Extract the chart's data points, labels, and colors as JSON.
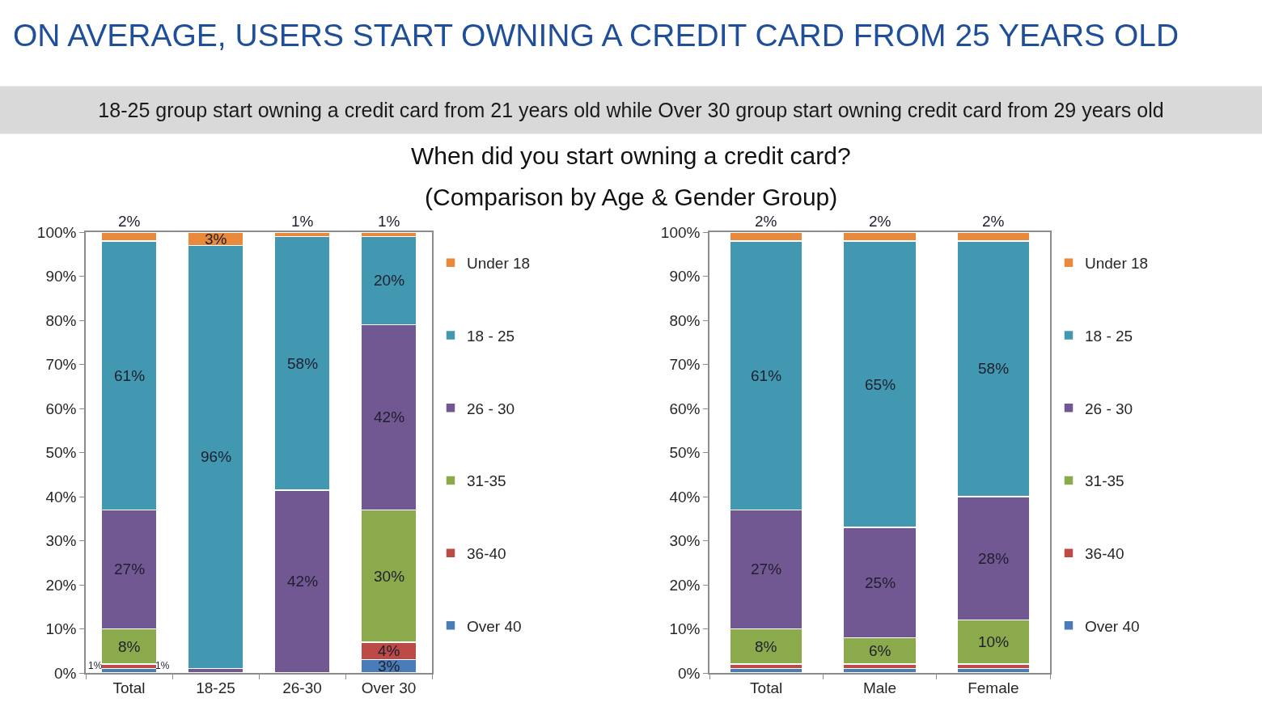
{
  "chart_data": [
    {
      "type": "bar",
      "title": "ON AVERAGE, USERS START OWNING A CREDIT CARD FROM 25 YEARS OLD",
      "subtitle": "18-25 group start owning a credit card from 21 years old while Over 30 group start owning credit card from 29 years old",
      "annotations": [
        "When did you start owning a credit card?",
        "(Comparison by Age & Gender Group)"
      ],
      "categories": [
        "Total",
        "18-25",
        "26-30",
        "Over 30"
      ],
      "stacked": true,
      "legend": "right",
      "ylim": [
        0,
        100
      ],
      "yticks": [
        {
          "value": 0,
          "label": "0%"
        },
        {
          "value": 10,
          "label": "10%"
        },
        {
          "value": 20,
          "label": "20%"
        },
        {
          "value": 30,
          "label": "30%"
        },
        {
          "value": 40,
          "label": "40%"
        },
        {
          "value": 50,
          "label": "50%"
        },
        {
          "value": 60,
          "label": "60%"
        },
        {
          "value": 70,
          "label": "70%"
        },
        {
          "value": 80,
          "label": "80%"
        },
        {
          "value": 90,
          "label": "90%"
        },
        {
          "value": 100,
          "label": "100%"
        }
      ],
      "series": [
        {
          "name": "Over 40",
          "color": "#4a7cb8",
          "values": [
            1,
            null,
            null,
            3
          ],
          "value_labels": [
            "1%",
            null,
            null,
            "3%"
          ]
        },
        {
          "name": "36-40",
          "color": "#bc4a47",
          "values": [
            1,
            null,
            null,
            4
          ],
          "value_labels": [
            "1%",
            null,
            null,
            "4%"
          ]
        },
        {
          "name": "31-35",
          "color": "#8aaa4c",
          "values": [
            8,
            null,
            null,
            30
          ],
          "value_labels": [
            "8%",
            null,
            null,
            "30%"
          ]
        },
        {
          "name": "26 - 30",
          "color": "#725892",
          "values": [
            27,
            1,
            41.5,
            42
          ],
          "value_labels": [
            "27%",
            null,
            "42%",
            "42%"
          ]
        },
        {
          "name": "18 - 25",
          "color": "#4297b1",
          "values": [
            61,
            96,
            57.5,
            20
          ],
          "value_labels": [
            "61%",
            "96%",
            "58%",
            "20%"
          ]
        },
        {
          "name": "Under 18",
          "color": "#e8893c",
          "values": [
            2,
            3,
            1,
            1
          ],
          "value_labels": [
            "2%",
            "3%",
            "1%",
            "1%"
          ]
        }
      ]
    },
    {
      "type": "bar",
      "categories": [
        "Total",
        "Male",
        "Female"
      ],
      "stacked": true,
      "legend": "right",
      "ylim": [
        0,
        100
      ],
      "yticks": [
        {
          "value": 0,
          "label": "0%"
        },
        {
          "value": 10,
          "label": "10%"
        },
        {
          "value": 20,
          "label": "20%"
        },
        {
          "value": 30,
          "label": "30%"
        },
        {
          "value": 40,
          "label": "40%"
        },
        {
          "value": 50,
          "label": "50%"
        },
        {
          "value": 60,
          "label": "60%"
        },
        {
          "value": 70,
          "label": "70%"
        },
        {
          "value": 80,
          "label": "80%"
        },
        {
          "value": 90,
          "label": "90%"
        },
        {
          "value": 100,
          "label": "100%"
        }
      ],
      "series": [
        {
          "name": "Over 40",
          "color": "#4a7cb8",
          "values": [
            1,
            1,
            1
          ],
          "value_labels": [
            null,
            null,
            null
          ]
        },
        {
          "name": "36-40",
          "color": "#bc4a47",
          "values": [
            1,
            1,
            1
          ],
          "value_labels": [
            null,
            null,
            null
          ]
        },
        {
          "name": "31-35",
          "color": "#8aaa4c",
          "values": [
            8,
            6,
            10
          ],
          "value_labels": [
            "8%",
            "6%",
            "10%"
          ]
        },
        {
          "name": "26 - 30",
          "color": "#725892",
          "values": [
            27,
            25,
            28
          ],
          "value_labels": [
            "27%",
            "25%",
            "28%"
          ]
        },
        {
          "name": "18 - 25",
          "color": "#4297b1",
          "values": [
            61,
            65,
            58
          ],
          "value_labels": [
            "61%",
            "65%",
            "58%"
          ]
        },
        {
          "name": "Under 18",
          "color": "#e8893c",
          "values": [
            2,
            2,
            2
          ],
          "value_labels": [
            "2%",
            "2%",
            "2%"
          ]
        }
      ]
    }
  ]
}
